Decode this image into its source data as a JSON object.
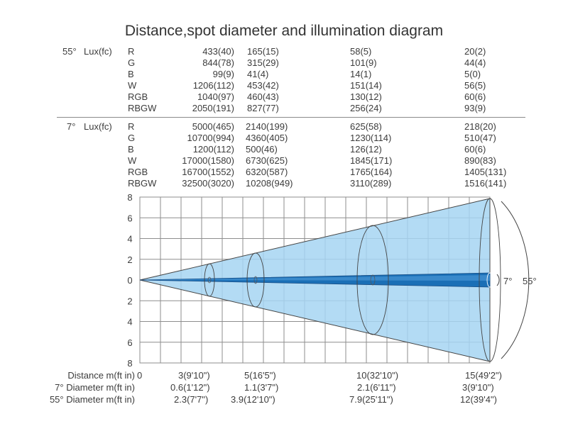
{
  "title": "Distance,spot diameter and illumination diagram",
  "tables": [
    {
      "angle_label": "55°",
      "unit_label": "Lux(fc)",
      "rows": [
        {
          "channel": "R",
          "values": [
            "433(40)",
            "165(15)",
            "58(5)",
            "20(2)"
          ]
        },
        {
          "channel": "G",
          "values": [
            "844(78)",
            "315(29)",
            "101(9)",
            "44(4)"
          ]
        },
        {
          "channel": "B",
          "values": [
            "99(9)",
            "41(4)",
            "14(1)",
            "5(0)"
          ]
        },
        {
          "channel": "W",
          "values": [
            "1206(112)",
            "453(42)",
            "151(14)",
            "56(5)"
          ]
        },
        {
          "channel": "RGB",
          "values": [
            "1040(97)",
            "460(43)",
            "130(12)",
            "60(6)"
          ]
        },
        {
          "channel": "RBGW",
          "values": [
            "2050(191)",
            "827(77)",
            "256(24)",
            "93(9)"
          ]
        }
      ]
    },
    {
      "angle_label": "7°",
      "unit_label": "Lux(fc)",
      "rows": [
        {
          "channel": "R",
          "values": [
            "5000(465)",
            "2140(199)",
            "625(58)",
            "218(20)"
          ]
        },
        {
          "channel": "G",
          "values": [
            "10700(994)",
            "4360(405)",
            "1230(114)",
            "510(47)"
          ]
        },
        {
          "channel": "B",
          "values": [
            "1200(112)",
            "500(46)",
            "126(12)",
            "60(6)"
          ]
        },
        {
          "channel": "W",
          "values": [
            "17000(1580)",
            "6730(625)",
            "1845(171)",
            "890(83)"
          ]
        },
        {
          "channel": "RGB",
          "values": [
            "16700(1552)",
            "6320(587)",
            "1765(164)",
            "1405(131)"
          ]
        },
        {
          "channel": "RBGW",
          "values": [
            "32500(3020)",
            "10208(949)",
            "3110(289)",
            "1516(141)"
          ]
        }
      ]
    }
  ],
  "diagram": {
    "y_ticks": [
      "8",
      "6",
      "4",
      "2",
      "0",
      "2",
      "4",
      "6",
      "8"
    ],
    "narrow_beam_label": "7°",
    "wide_beam_label": "55°",
    "colors": {
      "wide_cone": "#a6d5f2",
      "narrow_beam": "#1a6fb6",
      "grid": "#8e8e8e",
      "outline": "#444444"
    }
  },
  "bottom": {
    "distance_label": "Distance  m(ft in)",
    "distance_zero": "0",
    "distances": [
      "3(9'10\")",
      "5(16'5\")",
      "10(32'10\")",
      "15(49'2\")"
    ],
    "diameter7_label": "7°  Diameter  m(ft in)",
    "diameter7": [
      "0.6(1'12\")",
      "1.1(3'7\")",
      "2.1(6'11\")",
      "3(9'10\")"
    ],
    "diameter55_label": "55°  Diameter  m(ft in)",
    "diameter55": [
      "2.3(7'7\")",
      "3.9(12'10\")",
      "7.9(25'11\")",
      "12(39'4\")"
    ]
  }
}
